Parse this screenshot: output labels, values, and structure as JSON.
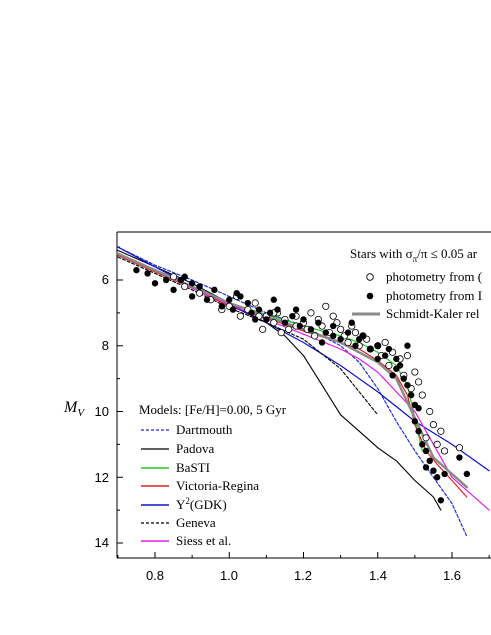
{
  "chart_data": {
    "type": "scatter",
    "ylabel": "M",
    "ylabel_sub": "V",
    "xlabel": "",
    "xlim": [
      0.7,
      1.7
    ],
    "ylim": [
      14.5,
      4.6
    ],
    "y_inverted": true,
    "x_ticks": [
      "0.8",
      "1.0",
      "1.2",
      "1.4",
      "1.6"
    ],
    "y_ticks": [
      "6",
      "8",
      "10",
      "12",
      "14"
    ],
    "legend_models": {
      "title": "Models: [Fe/H]=0.00, 5 Gyr",
      "placement": "bottom-left",
      "items": [
        {
          "label": "Dartmouth",
          "color": "#1f2fd0",
          "dash": "3,2"
        },
        {
          "label": "Padova",
          "color": "#000000",
          "dash": ""
        },
        {
          "label": "BaSTI",
          "color": "#22cc22",
          "dash": ""
        },
        {
          "label": "Victoria-Regina",
          "color": "#e02020",
          "dash": ""
        },
        {
          "label": "Y",
          "label_sup": "2",
          "label_rest": "(GDK)",
          "color": "#1010d0",
          "dash": ""
        },
        {
          "label": "Geneva",
          "color": "#000000",
          "dash": "3,2"
        },
        {
          "label": "Siess et al.",
          "color": "#e020e0",
          "dash": ""
        }
      ]
    },
    "legend_stars": {
      "title_prefix": "Stars with σ",
      "title_sub": "π",
      "title_rest": "/π ≤ 0.05 ar",
      "placement": "top-right",
      "items": [
        {
          "label": "photometry from (",
          "marker": "open-circle"
        },
        {
          "label": "photometry from I",
          "marker": "filled-circle"
        },
        {
          "label": "Schmidt-Kaler rel",
          "marker": "gray-line"
        }
      ]
    },
    "series": [
      {
        "name": "Dartmouth",
        "color": "#1f2fd0",
        "dash": "3,2",
        "width": 1.2,
        "x": [
          0.7,
          0.8,
          0.9,
          1.0,
          1.1,
          1.2,
          1.3,
          1.35,
          1.4,
          1.45,
          1.5,
          1.55,
          1.6,
          1.64
        ],
        "y": [
          5.0,
          5.55,
          6.0,
          6.5,
          7.0,
          7.4,
          8.0,
          8.5,
          9.3,
          10.3,
          11.2,
          12.0,
          12.8,
          13.8
        ]
      },
      {
        "name": "Padova",
        "color": "#000000",
        "dash": "",
        "width": 1.1,
        "x": [
          0.7,
          0.8,
          0.9,
          1.0,
          1.1,
          1.15,
          1.2,
          1.25,
          1.3,
          1.35,
          1.4,
          1.45,
          1.5,
          1.55,
          1.57
        ],
        "y": [
          5.1,
          5.6,
          6.1,
          6.7,
          7.3,
          7.7,
          8.3,
          9.2,
          10.1,
          10.6,
          11.1,
          11.5,
          12.1,
          12.6,
          13.0
        ]
      },
      {
        "name": "BaSTI",
        "color": "#22cc22",
        "dash": "",
        "width": 1.2,
        "x": [
          0.7,
          0.8,
          0.9,
          1.0,
          1.1,
          1.2,
          1.3,
          1.35,
          1.4,
          1.45,
          1.48,
          1.5,
          1.52
        ],
        "y": [
          5.2,
          5.7,
          6.2,
          6.7,
          7.05,
          7.4,
          7.7,
          7.9,
          8.2,
          8.6,
          9.2,
          10.2,
          11.2
        ]
      },
      {
        "name": "Victoria-Regina",
        "color": "#e02020",
        "dash": "",
        "width": 1.2,
        "x": [
          0.7,
          0.8,
          0.9,
          1.0,
          1.1,
          1.2,
          1.3,
          1.35,
          1.4,
          1.45,
          1.48,
          1.5,
          1.53,
          1.56,
          1.6,
          1.64
        ],
        "y": [
          5.25,
          5.75,
          6.25,
          6.8,
          7.15,
          7.55,
          7.9,
          8.1,
          8.45,
          8.9,
          9.5,
          10.4,
          11.2,
          11.6,
          12.1,
          12.6
        ]
      },
      {
        "name": "Y2(GDK)",
        "color": "#1010d0",
        "dash": "",
        "width": 1.2,
        "x": [
          0.7,
          0.8,
          0.9,
          1.0,
          1.1,
          1.2,
          1.3,
          1.4,
          1.5,
          1.6,
          1.7
        ],
        "y": [
          5.0,
          5.6,
          6.2,
          6.75,
          7.3,
          7.9,
          8.6,
          9.4,
          10.3,
          11.0,
          11.8
        ]
      },
      {
        "name": "Geneva",
        "color": "#000000",
        "dash": "3,2",
        "width": 1.1,
        "x": [
          0.7,
          0.8,
          0.9,
          1.0,
          1.1,
          1.2,
          1.3,
          1.35,
          1.4
        ],
        "y": [
          5.3,
          5.8,
          6.3,
          6.85,
          7.3,
          7.8,
          8.7,
          9.4,
          10.1
        ]
      },
      {
        "name": "Siess et al.",
        "color": "#e020e0",
        "dash": "",
        "width": 1.2,
        "x": [
          0.7,
          0.8,
          0.9,
          1.0,
          1.1,
          1.2,
          1.3,
          1.35,
          1.4,
          1.5,
          1.6,
          1.7
        ],
        "y": [
          5.2,
          5.7,
          6.25,
          6.75,
          7.2,
          7.65,
          8.1,
          8.4,
          8.8,
          10.0,
          12.0,
          13.0
        ]
      },
      {
        "name": "Schmidt-Kaler relation",
        "color": "#8a8a8a",
        "dash": "",
        "width": 2.5,
        "x": [
          0.7,
          0.8,
          0.9,
          1.0,
          1.1,
          1.2,
          1.3,
          1.4,
          1.45,
          1.5,
          1.55,
          1.6,
          1.64
        ],
        "y": [
          5.2,
          5.7,
          6.2,
          6.7,
          7.1,
          7.5,
          7.9,
          8.5,
          9.0,
          10.2,
          11.4,
          11.9,
          12.3
        ]
      }
    ],
    "points_open": {
      "x": [
        0.85,
        0.88,
        0.92,
        0.95,
        0.98,
        1.0,
        1.02,
        1.05,
        1.07,
        1.08,
        1.1,
        1.12,
        1.13,
        1.15,
        1.16,
        1.18,
        1.2,
        1.21,
        1.22,
        1.24,
        1.25,
        1.27,
        1.28,
        1.3,
        1.31,
        1.32,
        1.34,
        1.35,
        1.37,
        1.38,
        1.4,
        1.41,
        1.42,
        1.44,
        1.46,
        1.48,
        1.5,
        1.51,
        1.52,
        1.54,
        1.55,
        1.56,
        1.58,
        1.62,
        1.57,
        1.12,
        1.18,
        1.26,
        1.33,
        1.43,
        1.47,
        1.49,
        1.53,
        1.03,
        1.09,
        1.14,
        1.23,
        1.29,
        1.36
      ],
      "y": [
        5.9,
        6.2,
        6.4,
        6.6,
        6.9,
        6.8,
        6.5,
        6.9,
        6.7,
        7.1,
        7.1,
        7.3,
        7.0,
        7.2,
        7.5,
        7.1,
        7.3,
        7.5,
        7.0,
        7.2,
        7.4,
        7.6,
        7.1,
        7.5,
        7.7,
        7.9,
        7.6,
        8.0,
        7.8,
        8.1,
        8.0,
        8.3,
        7.9,
        8.2,
        8.4,
        8.3,
        8.8,
        9.1,
        9.5,
        10.0,
        10.4,
        11.0,
        11.2,
        11.1,
        10.6,
        7.0,
        7.4,
        6.8,
        7.4,
        8.6,
        8.9,
        9.3,
        10.8,
        7.1,
        7.5,
        7.6,
        7.7,
        7.3,
        7.7
      ]
    },
    "points_filled": {
      "x": [
        0.75,
        0.78,
        0.8,
        0.83,
        0.85,
        0.87,
        0.9,
        0.92,
        0.94,
        0.96,
        0.98,
        1.0,
        1.01,
        1.03,
        1.05,
        1.06,
        1.08,
        1.1,
        1.11,
        1.13,
        1.15,
        1.17,
        1.19,
        1.2,
        1.22,
        1.24,
        1.26,
        1.28,
        1.3,
        1.32,
        1.34,
        1.36,
        1.38,
        1.4,
        1.42,
        1.43,
        1.45,
        1.46,
        1.47,
        1.48,
        1.49,
        1.5,
        1.5,
        1.51,
        1.52,
        1.53,
        1.54,
        1.55,
        1.56,
        1.57,
        1.58,
        1.64,
        1.62,
        1.48,
        1.45,
        1.4,
        1.35,
        1.28,
        0.9,
        0.88,
        1.02,
        1.07,
        1.12,
        1.18,
        1.25,
        1.33,
        1.44,
        1.51,
        1.53
      ],
      "y": [
        5.7,
        5.8,
        6.1,
        6.0,
        6.3,
        6.0,
        6.5,
        6.2,
        6.6,
        6.3,
        6.8,
        6.6,
        6.9,
        6.5,
        6.7,
        7.0,
        6.9,
        7.2,
        7.0,
        6.9,
        7.3,
        7.1,
        7.4,
        7.2,
        7.5,
        7.3,
        7.6,
        7.4,
        7.8,
        7.6,
        8.0,
        7.7,
        8.1,
        8.0,
        8.3,
        8.1,
        8.4,
        8.6,
        9.0,
        9.2,
        9.5,
        9.8,
        10.3,
        10.6,
        11.0,
        11.2,
        11.5,
        11.8,
        12.0,
        12.7,
        11.9,
        11.9,
        11.4,
        8.0,
        8.7,
        8.4,
        7.8,
        7.7,
        6.1,
        5.9,
        6.4,
        7.2,
        6.6,
        6.9,
        7.9,
        7.3,
        8.9,
        9.9,
        11.7
      ]
    }
  }
}
